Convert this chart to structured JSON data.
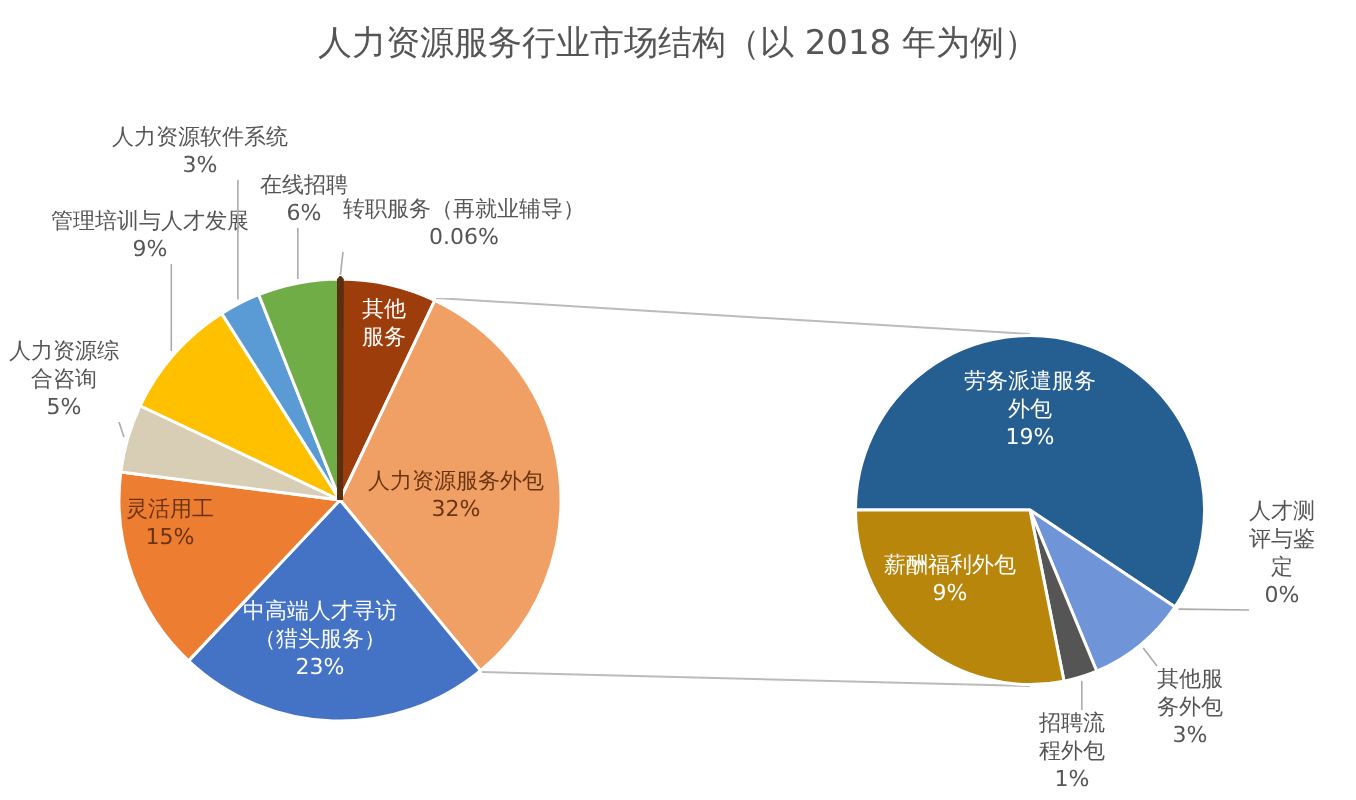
{
  "chart_data": [
    {
      "type": "pie",
      "title": "人力资源服务行业市场结构（以 2018 年为例）",
      "categories": [
        "转职服务（再就业辅导）",
        "其他服务",
        "人力资源服务外包",
        "中高端人才寻访（猎头服务）",
        "灵活用工",
        "人力资源综合咨询",
        "管理培训与人才发展",
        "人力资源软件系统",
        "在线招聘"
      ],
      "values": [
        0.06,
        7,
        32,
        23,
        15,
        5,
        9,
        3,
        6
      ],
      "colors": [
        "#5a2e10",
        "#9e3d0c",
        "#f1a065",
        "#4472c4",
        "#ed7d31",
        "#d8cdb5",
        "#ffc000",
        "#5b9bd5",
        "#70ad47"
      ],
      "value_labels": [
        "0.06%",
        null,
        "32%",
        "23%",
        "15%",
        "5%",
        "9%",
        "3%",
        "6%"
      ]
    },
    {
      "type": "pie",
      "categories": [
        "劳务派遣服务外包",
        "人才测评与鉴定",
        "其他服务外包",
        "招聘流程外包",
        "薪酬福利外包"
      ],
      "values": [
        19,
        0,
        3,
        1,
        9
      ],
      "colors": [
        "#255e91",
        "#2e7d32",
        "#6f95d8",
        "#555555",
        "#b8860b"
      ],
      "value_labels": [
        "19%",
        "0%",
        "3%",
        "1%",
        "9%"
      ]
    }
  ]
}
